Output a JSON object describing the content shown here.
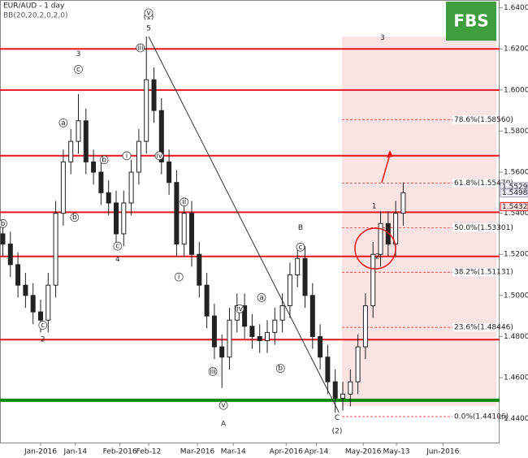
{
  "chart_data": {
    "type": "candlestick",
    "title": "EUR/AUD - 1 day",
    "subtitle": "BB(20,20,2,0,2,0)",
    "logo": "FBS",
    "x": [
      -10,
      -8,
      -6,
      -4,
      -2,
      0,
      2,
      4,
      6,
      8,
      10,
      12,
      14,
      16,
      18,
      20,
      22,
      24,
      26,
      28,
      30,
      32,
      34,
      36,
      38,
      40,
      42,
      44,
      46,
      48,
      50,
      52,
      54,
      56,
      58,
      60,
      62,
      64,
      66,
      68,
      70,
      72,
      74,
      76,
      78,
      80,
      82,
      84,
      86,
      88,
      90,
      92,
      94,
      96
    ],
    "open": [
      1.53,
      1.525,
      1.515,
      1.505,
      1.5,
      1.492,
      1.488,
      1.505,
      1.54,
      1.565,
      1.575,
      1.585,
      1.565,
      1.56,
      1.55,
      1.545,
      1.53,
      1.545,
      1.56,
      1.575,
      1.605,
      1.59,
      1.565,
      1.555,
      1.525,
      1.54,
      1.52,
      1.505,
      1.49,
      1.475,
      1.47,
      1.488,
      1.495,
      1.485,
      1.48,
      1.478,
      1.482,
      1.488,
      1.495,
      1.51,
      1.518,
      1.5,
      1.48,
      1.47,
      1.458,
      1.45,
      1.452,
      1.458,
      1.475,
      1.495,
      1.52,
      1.535,
      1.525,
      1.54
    ],
    "high": [
      1.536,
      1.531,
      1.521,
      1.511,
      1.506,
      1.498,
      1.511,
      1.546,
      1.571,
      1.581,
      1.598,
      1.591,
      1.571,
      1.566,
      1.556,
      1.551,
      1.551,
      1.566,
      1.581,
      1.626,
      1.611,
      1.596,
      1.571,
      1.561,
      1.546,
      1.546,
      1.526,
      1.511,
      1.496,
      1.481,
      1.494,
      1.501,
      1.501,
      1.491,
      1.486,
      1.488,
      1.494,
      1.501,
      1.516,
      1.524,
      1.524,
      1.506,
      1.486,
      1.476,
      1.464,
      1.458,
      1.464,
      1.481,
      1.501,
      1.526,
      1.541,
      1.541,
      1.546,
      1.555
    ],
    "low": [
      1.519,
      1.509,
      1.499,
      1.494,
      1.486,
      1.482,
      1.482,
      1.499,
      1.534,
      1.559,
      1.569,
      1.559,
      1.554,
      1.544,
      1.539,
      1.524,
      1.524,
      1.539,
      1.554,
      1.569,
      1.584,
      1.559,
      1.549,
      1.519,
      1.519,
      1.514,
      1.499,
      1.484,
      1.469,
      1.455,
      1.464,
      1.482,
      1.479,
      1.474,
      1.472,
      1.472,
      1.476,
      1.482,
      1.489,
      1.504,
      1.494,
      1.474,
      1.464,
      1.452,
      1.443,
      1.444,
      1.446,
      1.452,
      1.469,
      1.489,
      1.514,
      1.519,
      1.519,
      1.534
    ],
    "close": [
      1.525,
      1.515,
      1.505,
      1.5,
      1.492,
      1.488,
      1.505,
      1.54,
      1.565,
      1.575,
      1.585,
      1.565,
      1.56,
      1.55,
      1.545,
      1.53,
      1.545,
      1.56,
      1.575,
      1.605,
      1.59,
      1.565,
      1.555,
      1.525,
      1.54,
      1.52,
      1.505,
      1.49,
      1.475,
      1.47,
      1.488,
      1.495,
      1.485,
      1.48,
      1.478,
      1.482,
      1.488,
      1.495,
      1.51,
      1.518,
      1.5,
      1.48,
      1.47,
      1.458,
      1.45,
      1.452,
      1.458,
      1.475,
      1.495,
      1.52,
      1.535,
      1.525,
      1.54,
      1.55
    ],
    "up_color": "#222222",
    "down_color": "#222222",
    "xlim": [
      -10.75,
      121.5
    ],
    "xticks": [
      {
        "value": 0,
        "label": "Jan-2016"
      },
      {
        "value": 9.2,
        "label": "Jan-14"
      },
      {
        "value": 21,
        "label": "Feb-2016"
      },
      {
        "value": 28.6,
        "label": "Feb-12"
      },
      {
        "value": 41.5,
        "label": "Mar-2016"
      },
      {
        "value": 51,
        "label": "Mar-14"
      },
      {
        "value": 65,
        "label": "Apr-2016"
      },
      {
        "value": 73,
        "label": "Apr-14"
      },
      {
        "value": 85.4,
        "label": "May-2016"
      },
      {
        "value": 94.2,
        "label": "May-13"
      },
      {
        "value": 106.5,
        "label": "Jun-2016"
      }
    ],
    "ylim": [
      1.4284,
      1.6438
    ],
    "yticks": [
      {
        "value": 1.44,
        "label": "1.44000"
      },
      {
        "value": 1.46,
        "label": "1.46000"
      },
      {
        "value": 1.48,
        "label": "1.48000"
      },
      {
        "value": 1.5,
        "label": "1.50000"
      },
      {
        "value": 1.52,
        "label": "1.52000"
      },
      {
        "value": 1.54,
        "label": "1.54000"
      },
      {
        "value": 1.56,
        "label": "1.56000"
      },
      {
        "value": 1.58,
        "label": "1.58000"
      },
      {
        "value": 1.6,
        "label": "1.60000"
      },
      {
        "value": 1.62,
        "label": "1.62000"
      },
      {
        "value": 1.64,
        "label": "1.64000"
      }
    ],
    "levels": [
      {
        "value": 1.62,
        "color": "#e8141c"
      },
      {
        "value": 1.6,
        "color": "#e8141c"
      },
      {
        "value": 1.568,
        "color": "#e8141c"
      },
      {
        "value": 1.5405,
        "color": "#e8141c"
      },
      {
        "value": 1.519,
        "color": "#e8141c"
      },
      {
        "value": 1.4785,
        "color": "#e8141c"
      },
      {
        "value": 1.449,
        "color": "#0a8a0a"
      }
    ],
    "fib_levels": [
      {
        "value": 1.5856,
        "label": "78.6%(1.58560)"
      },
      {
        "value": 1.5547,
        "label": "61.8%(1.55470)"
      },
      {
        "value": 1.53301,
        "label": "50.0%(1.53301)"
      },
      {
        "value": 1.51131,
        "label": "38.2%(1.51131)"
      },
      {
        "value": 1.48446,
        "label": "23.6%(1.48446)"
      },
      {
        "value": 1.44106,
        "label": "0.0%(1.44106)"
      }
    ],
    "price_labels": [
      {
        "value": 1.55296,
        "label": "1.55296"
      },
      {
        "value": 1.54988,
        "label": "1.54988"
      },
      {
        "value": 1.54328,
        "label": "1.54328"
      }
    ],
    "trendline": {
      "x": [
        28.6,
        79
      ],
      "y": [
        1.626,
        1.443
      ]
    },
    "waves": [
      {
        "text": "(1)",
        "x": 28.6,
        "y": 1.6355
      },
      {
        "text": "5",
        "x": 28.6,
        "y": 1.63
      },
      {
        "text": "3",
        "x": 10,
        "y": 1.6175
      },
      {
        "text": "2",
        "x": 0.6,
        "y": 1.4785
      },
      {
        "text": "4",
        "x": 20.4,
        "y": 1.5175
      },
      {
        "text": "A",
        "x": 48.4,
        "y": 1.4375
      },
      {
        "text": "B",
        "x": 68.8,
        "y": 1.533
      },
      {
        "text": "C",
        "x": 78.5,
        "y": 1.4405
      },
      {
        "text": "(2)",
        "x": 78.5,
        "y": 1.434
      },
      {
        "text": "1",
        "x": 88.3,
        "y": 1.5435
      },
      {
        "text": "2",
        "x": 89.2,
        "y": 1.519
      },
      {
        "text": "3",
        "x": 90.5,
        "y": 1.6255
      },
      {
        "text": "c",
        "x": 10,
        "y": 1.61
      },
      {
        "text": "a",
        "x": 6,
        "y": 1.584
      },
      {
        "text": "b",
        "x": 9,
        "y": 1.538
      },
      {
        "text": "b",
        "x": 16.8,
        "y": 1.566
      },
      {
        "text": "c",
        "x": 20.4,
        "y": 1.524
      },
      {
        "text": "i",
        "x": 22.8,
        "y": 1.568
      },
      {
        "text": "iii",
        "x": 26.4,
        "y": 1.6205
      },
      {
        "text": "iv",
        "x": 31.4,
        "y": 1.568
      },
      {
        "text": "v",
        "x": 28.6,
        "y": 1.6375
      },
      {
        "text": "ii",
        "x": 38,
        "y": 1.5455
      },
      {
        "text": "i",
        "x": 36.6,
        "y": 1.509
      },
      {
        "text": "iii",
        "x": 45.6,
        "y": 1.463
      },
      {
        "text": "iv",
        "x": 52.7,
        "y": 1.4935
      },
      {
        "text": "v",
        "x": 48.4,
        "y": 1.4465
      },
      {
        "text": "a",
        "x": 58.5,
        "y": 1.499
      },
      {
        "text": "b",
        "x": 63.5,
        "y": 1.4645
      },
      {
        "text": "c",
        "x": 68.8,
        "y": 1.5235
      },
      {
        "text": "b",
        "x": -10,
        "y": 1.535
      },
      {
        "text": "c",
        "x": 0.6,
        "y": 1.4855
      }
    ]
  }
}
